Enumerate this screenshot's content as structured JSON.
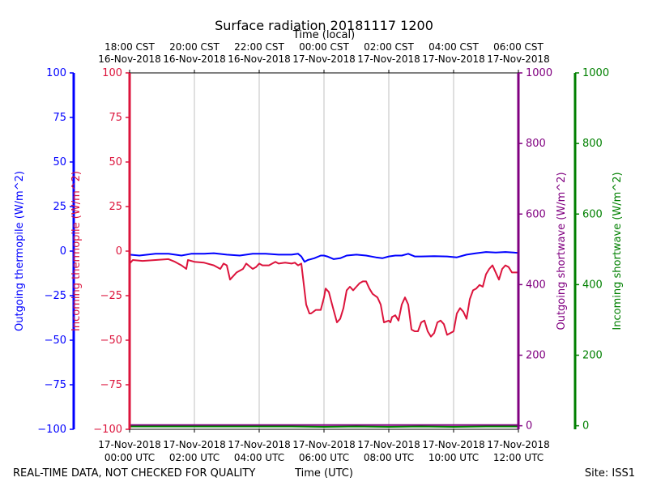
{
  "chart_data": {
    "type": "line",
    "title": "Surface radiation 20181117 1200",
    "top_axis_label": "Time (local)",
    "xlabel": "Time (UTC)",
    "footer_left": "REAL-TIME DATA, NOT CHECKED FOR QUALITY",
    "footer_right": "Site: ISS1",
    "x_range_hours": [
      0,
      12
    ],
    "bottom_ticks": [
      {
        "hour": 0,
        "date": "17-Nov-2018",
        "time": "00:00 UTC"
      },
      {
        "hour": 2,
        "date": "17-Nov-2018",
        "time": "02:00 UTC"
      },
      {
        "hour": 4,
        "date": "17-Nov-2018",
        "time": "04:00 UTC"
      },
      {
        "hour": 6,
        "date": "17-Nov-2018",
        "time": "06:00 UTC"
      },
      {
        "hour": 8,
        "date": "17-Nov-2018",
        "time": "08:00 UTC"
      },
      {
        "hour": 10,
        "date": "17-Nov-2018",
        "time": "10:00 UTC"
      },
      {
        "hour": 12,
        "date": "17-Nov-2018",
        "time": "12:00 UTC"
      }
    ],
    "top_ticks": [
      {
        "hour": 0,
        "time": "18:00 CST",
        "date": "16-Nov-2018"
      },
      {
        "hour": 2,
        "time": "20:00 CST",
        "date": "16-Nov-2018"
      },
      {
        "hour": 4,
        "time": "22:00 CST",
        "date": "16-Nov-2018"
      },
      {
        "hour": 6,
        "time": "00:00 CST",
        "date": "17-Nov-2018"
      },
      {
        "hour": 8,
        "time": "02:00 CST",
        "date": "17-Nov-2018"
      },
      {
        "hour": 10,
        "time": "04:00 CST",
        "date": "17-Nov-2018"
      },
      {
        "hour": 12,
        "time": "06:00 CST",
        "date": "17-Nov-2018"
      }
    ],
    "axes": [
      {
        "id": "out_thermo",
        "label": "Outgoing thermopile (W/m^2)",
        "color": "#0000ff",
        "side": "left",
        "order": 1,
        "range": [
          -100,
          100
        ],
        "ticks": [
          -100,
          -75,
          -50,
          -25,
          0,
          25,
          50,
          75,
          100
        ],
        "tick_labels": [
          "−100",
          "−75",
          "−50",
          "−25",
          "0",
          "25",
          "50",
          "75",
          "100"
        ]
      },
      {
        "id": "in_thermo",
        "label": "Incoming thermopile (W/m^2)",
        "color": "#dc143c",
        "side": "left",
        "order": 0,
        "range": [
          -100,
          100
        ],
        "ticks": [
          -100,
          -75,
          -50,
          -25,
          0,
          25,
          50,
          75,
          100
        ],
        "tick_labels": [
          "−100",
          "−75",
          "−50",
          "−25",
          "0",
          "25",
          "50",
          "75",
          "100"
        ]
      },
      {
        "id": "out_sw",
        "label": "Outgoing shortwave (W/m^2)",
        "color": "#800080",
        "side": "right",
        "order": 0,
        "range": [
          -10,
          1000
        ],
        "ticks": [
          0,
          200,
          400,
          600,
          800,
          1000
        ],
        "tick_labels": [
          "0",
          "200",
          "400",
          "600",
          "800",
          "1000"
        ]
      },
      {
        "id": "in_sw",
        "label": "Incoming shortwave (W/m^2)",
        "color": "#008000",
        "side": "right",
        "order": 1,
        "range": [
          -10,
          1000
        ],
        "ticks": [
          0,
          200,
          400,
          600,
          800,
          1000
        ],
        "tick_labels": [
          "0",
          "200",
          "400",
          "600",
          "800",
          "1000"
        ]
      }
    ],
    "series": [
      {
        "name": "Outgoing thermopile",
        "axis": "out_thermo",
        "color": "#0000ff",
        "x": [
          0,
          0.3,
          0.8,
          1.2,
          1.6,
          1.9,
          2.3,
          2.6,
          3.0,
          3.4,
          3.8,
          4.2,
          4.6,
          5.0,
          5.2,
          5.3,
          5.4,
          5.5,
          5.7,
          5.9,
          6.0,
          6.1,
          6.3,
          6.5,
          6.7,
          7.0,
          7.3,
          7.6,
          7.8,
          8.0,
          8.2,
          8.4,
          8.6,
          8.8,
          9.0,
          9.4,
          9.8,
          10.1,
          10.4,
          10.7,
          11.0,
          11.3,
          11.6,
          12.0
        ],
        "y": [
          -2,
          -2.5,
          -1.5,
          -1.5,
          -2.5,
          -1.5,
          -1.5,
          -1.2,
          -2,
          -2.5,
          -1.5,
          -1.5,
          -2,
          -2,
          -1.5,
          -3,
          -6,
          -5,
          -4,
          -2.5,
          -2.5,
          -3,
          -4.5,
          -4,
          -2.5,
          -2,
          -2.5,
          -3.5,
          -4,
          -3,
          -2.5,
          -2.5,
          -1.5,
          -3,
          -3,
          -2.8,
          -3,
          -3.5,
          -2,
          -1.2,
          -0.5,
          -0.8,
          -0.5,
          -1
        ]
      },
      {
        "name": "Incoming thermopile",
        "axis": "in_thermo",
        "color": "#dc143c",
        "x": [
          0,
          0.1,
          0.4,
          0.8,
          1.2,
          1.4,
          1.6,
          1.75,
          1.8,
          2.0,
          2.3,
          2.6,
          2.8,
          2.9,
          3.0,
          3.1,
          3.3,
          3.5,
          3.6,
          3.8,
          3.9,
          4.0,
          4.1,
          4.3,
          4.5,
          4.6,
          4.8,
          5.0,
          5.1,
          5.2,
          5.3,
          5.45,
          5.55,
          5.6,
          5.75,
          5.9,
          6.0,
          6.05,
          6.15,
          6.25,
          6.4,
          6.5,
          6.6,
          6.7,
          6.8,
          6.9,
          7.0,
          7.1,
          7.2,
          7.3,
          7.4,
          7.5,
          7.65,
          7.75,
          7.85,
          8.0,
          8.05,
          8.1,
          8.2,
          8.3,
          8.4,
          8.5,
          8.6,
          8.7,
          8.8,
          8.9,
          9.0,
          9.1,
          9.2,
          9.3,
          9.4,
          9.5,
          9.6,
          9.7,
          9.8,
          9.9,
          10.0,
          10.1,
          10.2,
          10.3,
          10.4,
          10.5,
          10.6,
          10.7,
          10.8,
          10.9,
          11.0,
          11.1,
          11.2,
          11.3,
          11.4,
          11.5,
          11.6,
          11.7,
          11.8,
          12.0
        ],
        "y": [
          -7,
          -5,
          -5.5,
          -5,
          -4.5,
          -6,
          -8,
          -10,
          -5,
          -6,
          -6.5,
          -8,
          -10,
          -7,
          -8,
          -16,
          -12,
          -10,
          -7,
          -10,
          -9,
          -7,
          -8,
          -8,
          -6,
          -7,
          -6.5,
          -7,
          -6.5,
          -8,
          -7,
          -30,
          -35,
          -35,
          -33,
          -33,
          -26,
          -21,
          -23,
          -30,
          -40,
          -38,
          -32,
          -22,
          -20,
          -22,
          -20,
          -18,
          -17,
          -17,
          -21,
          -24,
          -26,
          -30,
          -40,
          -39,
          -40,
          -37,
          -36,
          -39,
          -30,
          -26,
          -30,
          -44,
          -45,
          -45,
          -40,
          -39,
          -45,
          -48,
          -46,
          -40,
          -39,
          -41,
          -47,
          -46,
          -45,
          -35,
          -32,
          -34,
          -38,
          -27,
          -22,
          -21,
          -19,
          -20,
          -13,
          -10,
          -8,
          -12,
          -16,
          -10,
          -8,
          -9,
          -12,
          -12
        ]
      },
      {
        "name": "Outgoing shortwave",
        "axis": "out_sw",
        "color": "#800080",
        "x": [
          0,
          3,
          6,
          9,
          12
        ],
        "y": [
          2,
          2,
          2,
          2,
          2
        ]
      },
      {
        "name": "Incoming shortwave",
        "axis": "in_sw",
        "color": "#008000",
        "x": [
          0,
          5,
          6,
          7,
          8,
          9,
          10,
          11,
          12
        ],
        "y": [
          -2,
          -2,
          -3,
          -2,
          -3,
          -2,
          -3,
          -2,
          -2
        ]
      }
    ]
  }
}
